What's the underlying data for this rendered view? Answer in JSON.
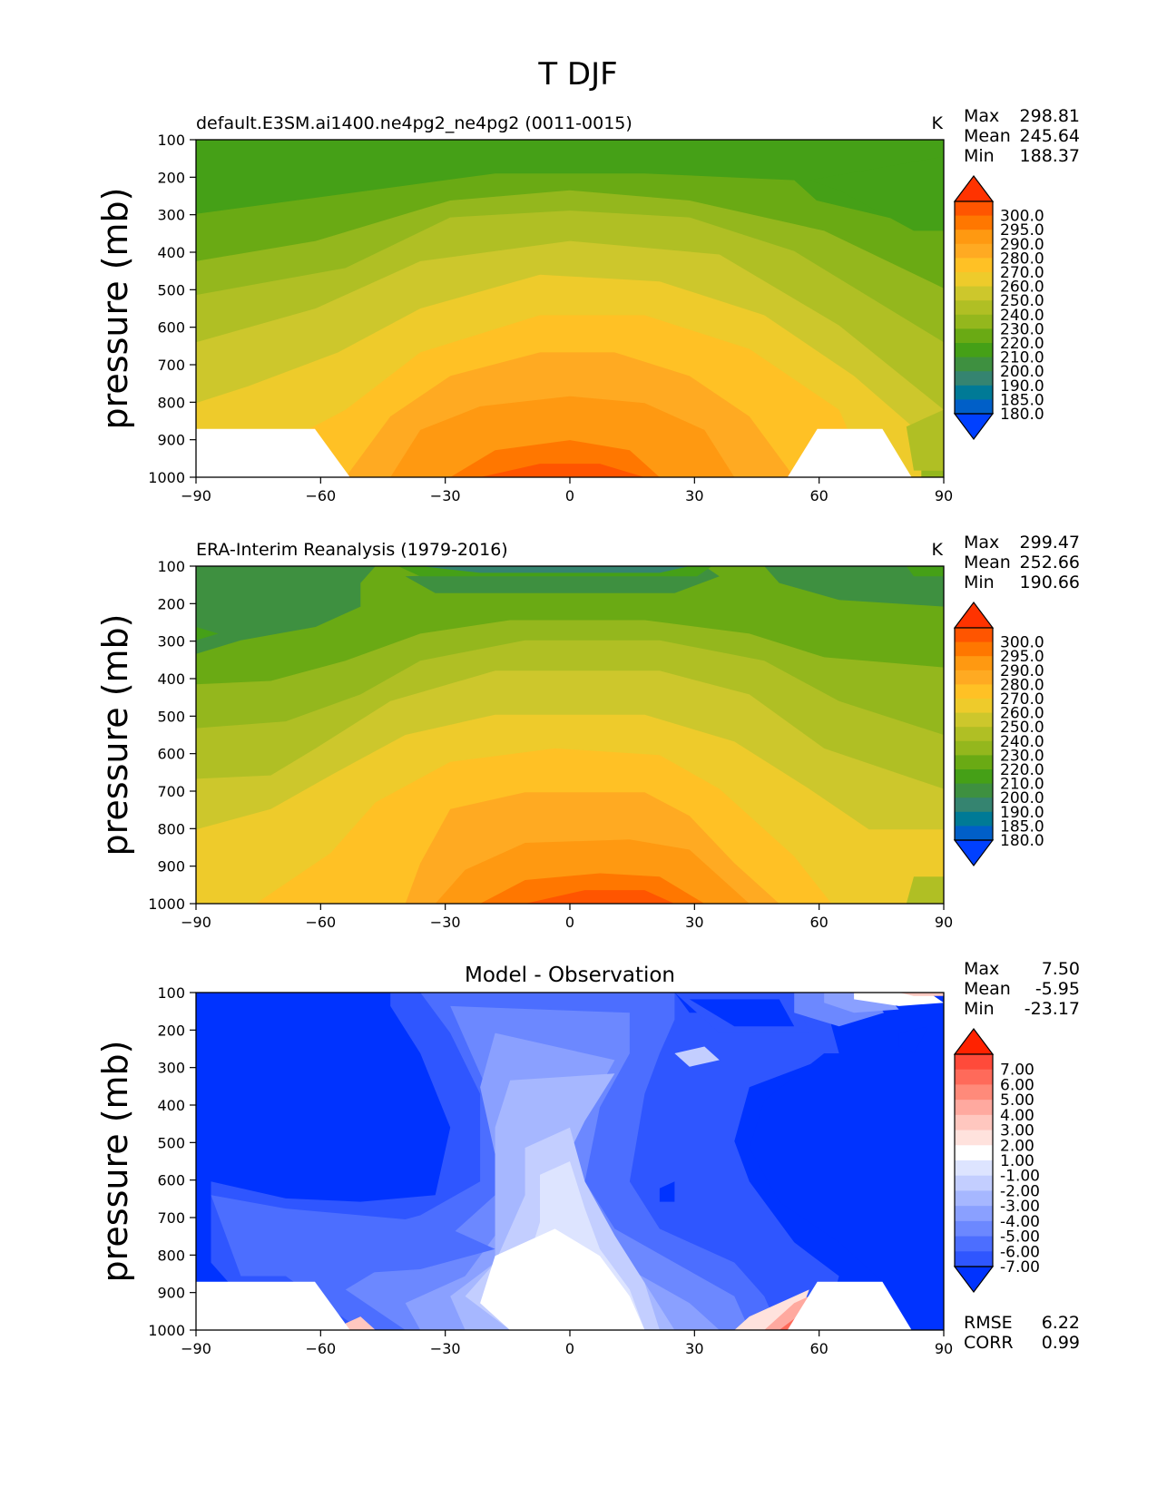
{
  "title": "T DJF",
  "ylabel": "pressure (mb)",
  "x_ticks": [
    "−90",
    "−60",
    "−30",
    "0",
    "30",
    "60",
    "90"
  ],
  "y_ticks": [
    "100",
    "200",
    "300",
    "400",
    "500",
    "600",
    "700",
    "800",
    "900",
    "1000"
  ],
  "colorbar_abs": {
    "labels": [
      "300.0",
      "295.0",
      "290.0",
      "280.0",
      "270.0",
      "260.0",
      "250.0",
      "240.0",
      "230.0",
      "220.0",
      "210.0",
      "200.0",
      "190.0",
      "185.0",
      "180.0"
    ],
    "colors": [
      "#ff3300",
      "#ff5500",
      "#ff7700",
      "#ff9911",
      "#ffaa22",
      "#ffc125",
      "#eecb2b",
      "#cdc72c",
      "#b0bf24",
      "#94b71d",
      "#6aaa14",
      "#45a017",
      "#3e9040",
      "#358470",
      "#007a96",
      "#005fc8",
      "#0040ff"
    ]
  },
  "colorbar_diff": {
    "labels": [
      "7.00",
      "6.00",
      "5.00",
      "4.00",
      "3.00",
      "2.00",
      "1.00",
      "-1.00",
      "-2.00",
      "-3.00",
      "-4.00",
      "-5.00",
      "-6.00",
      "-7.00"
    ],
    "colors": [
      "#ff2200",
      "#ff4a3a",
      "#ff6a5a",
      "#ff8a7a",
      "#ffa99f",
      "#ffc7bf",
      "#ffe2dd",
      "#ffffff",
      "#dde4ff",
      "#c3ceff",
      "#a6b7ff",
      "#8aa0ff",
      "#6c88ff",
      "#4c6eff",
      "#2f56ff",
      "#0033ff"
    ]
  },
  "panels": [
    {
      "subtitle": "default.E3SM.ai1400.ne4pg2_ne4pg2 (0011-0015)",
      "units": "K",
      "stats": [
        {
          "label": "Max",
          "value": "298.81"
        },
        {
          "label": "Mean",
          "value": "245.64"
        },
        {
          "label": "Min",
          "value": "188.37"
        }
      ]
    },
    {
      "subtitle": "ERA-Interim Reanalysis (1979-2016)",
      "units": "K",
      "stats": [
        {
          "label": "Max",
          "value": "299.47"
        },
        {
          "label": "Mean",
          "value": "252.66"
        },
        {
          "label": "Min",
          "value": "190.66"
        }
      ]
    },
    {
      "subtitle": "Model - Observation",
      "units": "",
      "stats": [
        {
          "label": "Max",
          "value": "7.50"
        },
        {
          "label": "Mean",
          "value": "-5.95"
        },
        {
          "label": "Min",
          "value": "-23.17"
        }
      ],
      "metrics": [
        {
          "label": "RMSE",
          "value": "6.22"
        },
        {
          "label": "CORR",
          "value": "0.99"
        }
      ]
    }
  ],
  "chart_data": [
    {
      "type": "heatmap",
      "title": "default.E3SM.ai1400.ne4pg2_ne4pg2 (0011-0015)",
      "xlabel": "",
      "ylabel": "pressure (mb)",
      "xlim": [
        -90,
        90
      ],
      "ylim": [
        1000,
        100
      ],
      "units": "K",
      "x": [
        -90,
        -60,
        -30,
        0,
        30,
        60,
        90
      ],
      "y": [
        100,
        200,
        300,
        400,
        500,
        600,
        700,
        800,
        900,
        1000
      ],
      "z_approx": [
        [
          210,
          206,
          200,
          196,
          200,
          206,
          208
        ],
        [
          206,
          210,
          220,
          222,
          220,
          208,
          204
        ],
        [
          206,
          220,
          236,
          240,
          236,
          220,
          206
        ],
        [
          215,
          232,
          254,
          258,
          250,
          232,
          215
        ],
        [
          225,
          246,
          266,
          270,
          262,
          244,
          222
        ],
        [
          232,
          254,
          274,
          280,
          272,
          254,
          228
        ],
        [
          236,
          260,
          280,
          286,
          280,
          260,
          234
        ],
        [
          240,
          264,
          286,
          292,
          286,
          266,
          238
        ],
        [
          null,
          268,
          290,
          296,
          290,
          268,
          240
        ],
        [
          null,
          null,
          292,
          298,
          292,
          null,
          242
        ]
      ],
      "levels": [
        180,
        185,
        190,
        200,
        210,
        220,
        230,
        240,
        250,
        260,
        270,
        280,
        290,
        295,
        300
      ]
    },
    {
      "type": "heatmap",
      "title": "ERA-Interim Reanalysis (1979-2016)",
      "xlabel": "",
      "ylabel": "pressure (mb)",
      "xlim": [
        -90,
        90
      ],
      "ylim": [
        1000,
        100
      ],
      "units": "K",
      "x": [
        -90,
        -60,
        -30,
        0,
        30,
        60,
        90
      ],
      "y": [
        100,
        200,
        300,
        400,
        500,
        600,
        700,
        800,
        900,
        1000
      ],
      "z_approx": [
        [
          220,
          218,
          206,
          196,
          206,
          218,
          216
        ],
        [
          218,
          220,
          230,
          232,
          228,
          220,
          218
        ],
        [
          220,
          232,
          246,
          250,
          244,
          232,
          222
        ],
        [
          232,
          244,
          260,
          262,
          256,
          244,
          234
        ],
        [
          238,
          252,
          268,
          270,
          264,
          252,
          240
        ],
        [
          242,
          258,
          274,
          278,
          272,
          258,
          244
        ],
        [
          248,
          264,
          280,
          284,
          280,
          264,
          250
        ],
        [
          252,
          268,
          284,
          290,
          286,
          270,
          254
        ],
        [
          258,
          272,
          288,
          296,
          292,
          272,
          256
        ],
        [
          262,
          274,
          292,
          299,
          294,
          274,
          258
        ]
      ],
      "levels": [
        180,
        185,
        190,
        200,
        210,
        220,
        230,
        240,
        250,
        260,
        270,
        280,
        290,
        295,
        300
      ]
    },
    {
      "type": "heatmap",
      "title": "Model - Observation",
      "xlabel": "",
      "ylabel": "pressure (mb)",
      "xlim": [
        -90,
        90
      ],
      "ylim": [
        1000,
        100
      ],
      "x": [
        -90,
        -60,
        -30,
        0,
        30,
        60,
        90
      ],
      "y": [
        100,
        200,
        300,
        400,
        500,
        600,
        700,
        800,
        900,
        1000
      ],
      "z_approx": [
        [
          -10,
          -10,
          -5,
          -3,
          -8,
          -12,
          6
        ],
        [
          -12,
          -12,
          -4,
          -2,
          -6,
          -8,
          -2
        ],
        [
          -14,
          -12,
          -4,
          -2,
          -4,
          -8,
          -10
        ],
        [
          -17,
          -10,
          -4,
          -1,
          -4,
          -10,
          -18
        ],
        [
          -13,
          -8,
          -3,
          0,
          -4,
          -12,
          -18
        ],
        [
          -10,
          -6,
          -2,
          0,
          -4,
          -12,
          -16
        ],
        [
          -9,
          -5,
          -2,
          0,
          -3,
          -9,
          -16
        ],
        [
          -6,
          -5,
          -2,
          0,
          -3,
          -8,
          -16
        ],
        [
          null,
          -3,
          -1,
          0,
          -2,
          -6,
          -16
        ],
        [
          null,
          null,
          -1,
          0,
          -1,
          null,
          -16
        ]
      ],
      "levels": [
        -7,
        -6,
        -5,
        -4,
        -3,
        -2,
        -1,
        1,
        2,
        3,
        4,
        5,
        6,
        7
      ]
    }
  ]
}
